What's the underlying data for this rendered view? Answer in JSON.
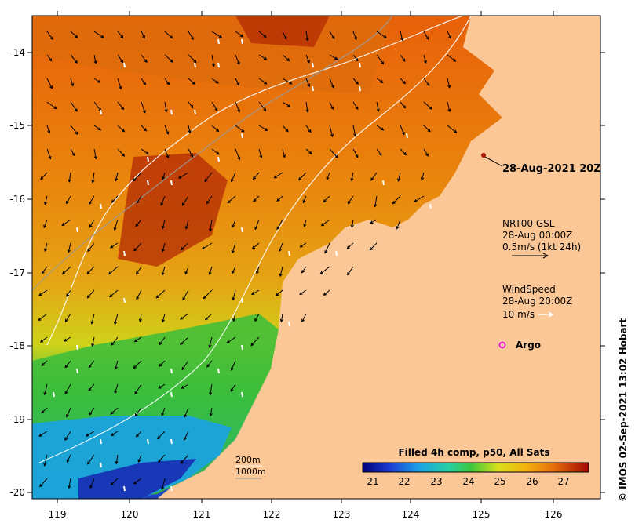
{
  "map": {
    "lat_ticks": [
      "-14",
      "-15",
      "-16",
      "-17",
      "-18",
      "-19",
      "-20"
    ],
    "lon_ticks": [
      "119",
      "120",
      "121",
      "122",
      "123",
      "124",
      "125",
      "126"
    ],
    "timestamp_label": "28-Aug-2021 20Z",
    "current_legend": {
      "title": "NRT00 GSL",
      "time": "28-Aug 00:00Z",
      "scale": "0.5m/s (1kt 24h)"
    },
    "wind_legend": {
      "title": "WindSpeed",
      "time": "28-Aug 20:00Z",
      "scale": "10 m/s"
    },
    "argo_label": "Argo",
    "contour_labels": [
      "200m",
      "1000m"
    ],
    "colorbar": {
      "title": "Filled 4h comp, p50, All Sats",
      "ticks": [
        "21",
        "22",
        "23",
        "24",
        "25",
        "26",
        "27"
      ]
    },
    "credit": "© IMOS 02-Sep-2021 13:02 Hobart",
    "colors": {
      "land": "#fcc796",
      "sst_warm": "#e07a0c",
      "sst_hot": "#a30e00",
      "sst_cool": "#19a3e0",
      "argo": "#e020e0"
    }
  }
}
